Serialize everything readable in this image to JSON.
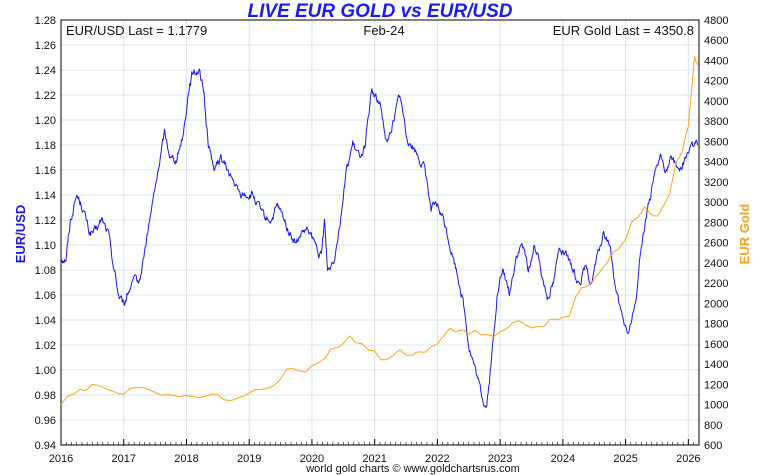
{
  "colors": {
    "eurusd": "#1a1ae6",
    "gold": "#f5a81c",
    "grid": "#d8e4ee",
    "title": "#1a1aff"
  },
  "chart_data": {
    "type": "line",
    "title": "LIVE EUR GOLD vs EUR/USD",
    "subtitle": "Feb-24",
    "left_annotation": "EUR/USD Last = 1.1779",
    "right_annotation": "EUR Gold Last = 4350.8",
    "ylabel_left": "EUR/USD",
    "ylabel_right": "EUR Gold",
    "credit": "world gold charts © www.goldchartsrus.com",
    "x_range": [
      2016,
      2026.17
    ],
    "x_ticks": [
      "2016",
      "2017",
      "2018",
      "2019",
      "2020",
      "2021",
      "2022",
      "2023",
      "2024",
      "2025",
      "2026"
    ],
    "ylim_left": [
      0.94,
      1.28
    ],
    "y_ticks_left": [
      "0.94",
      "0.96",
      "0.98",
      "1.00",
      "1.02",
      "1.04",
      "1.06",
      "1.08",
      "1.10",
      "1.12",
      "1.14",
      "1.16",
      "1.18",
      "1.20",
      "1.22",
      "1.24",
      "1.26",
      "1.28"
    ],
    "ylim_right": [
      600,
      4800
    ],
    "y_ticks_right": [
      "600",
      "800",
      "1000",
      "1200",
      "1400",
      "1600",
      "1800",
      "2000",
      "2200",
      "2400",
      "2600",
      "2800",
      "3000",
      "3200",
      "3400",
      "3600",
      "3800",
      "4000",
      "4200",
      "4400",
      "4600",
      "4800"
    ],
    "series": [
      {
        "name": "EUR/USD",
        "axis": "left",
        "points": [
          [
            2016.0,
            1.09
          ],
          [
            2016.08,
            1.09
          ],
          [
            2016.15,
            1.12
          ],
          [
            2016.25,
            1.14
          ],
          [
            2016.35,
            1.13
          ],
          [
            2016.45,
            1.11
          ],
          [
            2016.55,
            1.11
          ],
          [
            2016.65,
            1.12
          ],
          [
            2016.75,
            1.11
          ],
          [
            2016.85,
            1.08
          ],
          [
            2016.92,
            1.06
          ],
          [
            2017.0,
            1.05
          ],
          [
            2017.05,
            1.06
          ],
          [
            2017.15,
            1.07
          ],
          [
            2017.25,
            1.07
          ],
          [
            2017.35,
            1.1
          ],
          [
            2017.45,
            1.13
          ],
          [
            2017.55,
            1.16
          ],
          [
            2017.65,
            1.19
          ],
          [
            2017.75,
            1.17
          ],
          [
            2017.85,
            1.17
          ],
          [
            2017.95,
            1.19
          ],
          [
            2018.05,
            1.23
          ],
          [
            2018.12,
            1.24
          ],
          [
            2018.2,
            1.24
          ],
          [
            2018.28,
            1.22
          ],
          [
            2018.35,
            1.18
          ],
          [
            2018.45,
            1.16
          ],
          [
            2018.55,
            1.17
          ],
          [
            2018.65,
            1.16
          ],
          [
            2018.75,
            1.15
          ],
          [
            2018.85,
            1.14
          ],
          [
            2018.95,
            1.14
          ],
          [
            2019.05,
            1.14
          ],
          [
            2019.15,
            1.13
          ],
          [
            2019.25,
            1.12
          ],
          [
            2019.35,
            1.12
          ],
          [
            2019.45,
            1.13
          ],
          [
            2019.55,
            1.12
          ],
          [
            2019.65,
            1.11
          ],
          [
            2019.75,
            1.1
          ],
          [
            2019.85,
            1.11
          ],
          [
            2019.95,
            1.11
          ],
          [
            2020.05,
            1.1
          ],
          [
            2020.15,
            1.09
          ],
          [
            2020.2,
            1.12
          ],
          [
            2020.25,
            1.08
          ],
          [
            2020.35,
            1.09
          ],
          [
            2020.45,
            1.12
          ],
          [
            2020.55,
            1.16
          ],
          [
            2020.65,
            1.18
          ],
          [
            2020.75,
            1.17
          ],
          [
            2020.85,
            1.18
          ],
          [
            2020.95,
            1.22
          ],
          [
            2021.0,
            1.22
          ],
          [
            2021.1,
            1.21
          ],
          [
            2021.2,
            1.18
          ],
          [
            2021.3,
            1.2
          ],
          [
            2021.4,
            1.22
          ],
          [
            2021.5,
            1.19
          ],
          [
            2021.6,
            1.18
          ],
          [
            2021.7,
            1.17
          ],
          [
            2021.8,
            1.16
          ],
          [
            2021.9,
            1.13
          ],
          [
            2022.0,
            1.13
          ],
          [
            2022.1,
            1.12
          ],
          [
            2022.2,
            1.1
          ],
          [
            2022.3,
            1.08
          ],
          [
            2022.4,
            1.06
          ],
          [
            2022.5,
            1.02
          ],
          [
            2022.6,
            1.0
          ],
          [
            2022.7,
            0.98
          ],
          [
            2022.78,
            0.97
          ],
          [
            2022.85,
            1.0
          ],
          [
            2022.95,
            1.06
          ],
          [
            2023.05,
            1.08
          ],
          [
            2023.15,
            1.06
          ],
          [
            2023.25,
            1.09
          ],
          [
            2023.35,
            1.1
          ],
          [
            2023.45,
            1.08
          ],
          [
            2023.55,
            1.1
          ],
          [
            2023.65,
            1.08
          ],
          [
            2023.75,
            1.06
          ],
          [
            2023.85,
            1.07
          ],
          [
            2023.95,
            1.1
          ],
          [
            2024.05,
            1.09
          ],
          [
            2024.15,
            1.08
          ],
          [
            2024.25,
            1.07
          ],
          [
            2024.35,
            1.08
          ],
          [
            2024.45,
            1.07
          ],
          [
            2024.55,
            1.09
          ],
          [
            2024.65,
            1.11
          ],
          [
            2024.75,
            1.1
          ],
          [
            2024.85,
            1.06
          ],
          [
            2024.95,
            1.04
          ],
          [
            2025.05,
            1.03
          ],
          [
            2025.15,
            1.05
          ],
          [
            2025.25,
            1.1
          ],
          [
            2025.35,
            1.13
          ],
          [
            2025.45,
            1.15
          ],
          [
            2025.55,
            1.17
          ],
          [
            2025.65,
            1.16
          ],
          [
            2025.75,
            1.17
          ],
          [
            2025.85,
            1.16
          ],
          [
            2025.95,
            1.17
          ],
          [
            2026.05,
            1.18
          ],
          [
            2026.15,
            1.18
          ]
        ]
      },
      {
        "name": "EUR Gold",
        "axis": "right",
        "points": [
          [
            2016.0,
            1000
          ],
          [
            2016.1,
            1080
          ],
          [
            2016.2,
            1100
          ],
          [
            2016.3,
            1150
          ],
          [
            2016.4,
            1140
          ],
          [
            2016.5,
            1200
          ],
          [
            2016.6,
            1190
          ],
          [
            2016.7,
            1160
          ],
          [
            2016.8,
            1140
          ],
          [
            2016.9,
            1110
          ],
          [
            2017.0,
            1100
          ],
          [
            2017.1,
            1160
          ],
          [
            2017.2,
            1170
          ],
          [
            2017.3,
            1170
          ],
          [
            2017.4,
            1150
          ],
          [
            2017.5,
            1120
          ],
          [
            2017.6,
            1090
          ],
          [
            2017.7,
            1100
          ],
          [
            2017.8,
            1090
          ],
          [
            2017.9,
            1080
          ],
          [
            2018.0,
            1090
          ],
          [
            2018.1,
            1080
          ],
          [
            2018.2,
            1070
          ],
          [
            2018.3,
            1080
          ],
          [
            2018.4,
            1100
          ],
          [
            2018.5,
            1100
          ],
          [
            2018.6,
            1050
          ],
          [
            2018.7,
            1040
          ],
          [
            2018.8,
            1060
          ],
          [
            2018.9,
            1080
          ],
          [
            2019.0,
            1110
          ],
          [
            2019.1,
            1150
          ],
          [
            2019.2,
            1150
          ],
          [
            2019.3,
            1160
          ],
          [
            2019.4,
            1190
          ],
          [
            2019.5,
            1250
          ],
          [
            2019.6,
            1350
          ],
          [
            2019.7,
            1360
          ],
          [
            2019.8,
            1330
          ],
          [
            2019.9,
            1320
          ],
          [
            2020.0,
            1380
          ],
          [
            2020.1,
            1410
          ],
          [
            2020.2,
            1450
          ],
          [
            2020.3,
            1550
          ],
          [
            2020.4,
            1560
          ],
          [
            2020.5,
            1600
          ],
          [
            2020.6,
            1680
          ],
          [
            2020.7,
            1610
          ],
          [
            2020.8,
            1600
          ],
          [
            2020.9,
            1540
          ],
          [
            2021.0,
            1530
          ],
          [
            2021.1,
            1440
          ],
          [
            2021.2,
            1450
          ],
          [
            2021.3,
            1490
          ],
          [
            2021.4,
            1540
          ],
          [
            2021.5,
            1490
          ],
          [
            2021.6,
            1490
          ],
          [
            2021.7,
            1520
          ],
          [
            2021.8,
            1520
          ],
          [
            2021.9,
            1570
          ],
          [
            2022.0,
            1600
          ],
          [
            2022.1,
            1680
          ],
          [
            2022.2,
            1750
          ],
          [
            2022.3,
            1720
          ],
          [
            2022.4,
            1740
          ],
          [
            2022.5,
            1700
          ],
          [
            2022.6,
            1730
          ],
          [
            2022.7,
            1690
          ],
          [
            2022.8,
            1690
          ],
          [
            2022.9,
            1670
          ],
          [
            2023.0,
            1720
          ],
          [
            2023.1,
            1750
          ],
          [
            2023.2,
            1810
          ],
          [
            2023.3,
            1830
          ],
          [
            2023.4,
            1790
          ],
          [
            2023.5,
            1760
          ],
          [
            2023.6,
            1770
          ],
          [
            2023.7,
            1770
          ],
          [
            2023.8,
            1840
          ],
          [
            2023.9,
            1840
          ],
          [
            2024.0,
            1860
          ],
          [
            2024.1,
            1870
          ],
          [
            2024.2,
            2060
          ],
          [
            2024.3,
            2150
          ],
          [
            2024.4,
            2170
          ],
          [
            2024.5,
            2240
          ],
          [
            2024.6,
            2320
          ],
          [
            2024.7,
            2400
          ],
          [
            2024.8,
            2500
          ],
          [
            2024.9,
            2550
          ],
          [
            2025.0,
            2640
          ],
          [
            2025.1,
            2800
          ],
          [
            2025.2,
            2850
          ],
          [
            2025.3,
            2950
          ],
          [
            2025.4,
            2880
          ],
          [
            2025.5,
            2860
          ],
          [
            2025.6,
            2960
          ],
          [
            2025.7,
            3080
          ],
          [
            2025.8,
            3380
          ],
          [
            2025.9,
            3500
          ],
          [
            2026.0,
            3750
          ],
          [
            2026.05,
            4100
          ],
          [
            2026.1,
            4450
          ],
          [
            2026.15,
            4350
          ]
        ]
      }
    ]
  }
}
